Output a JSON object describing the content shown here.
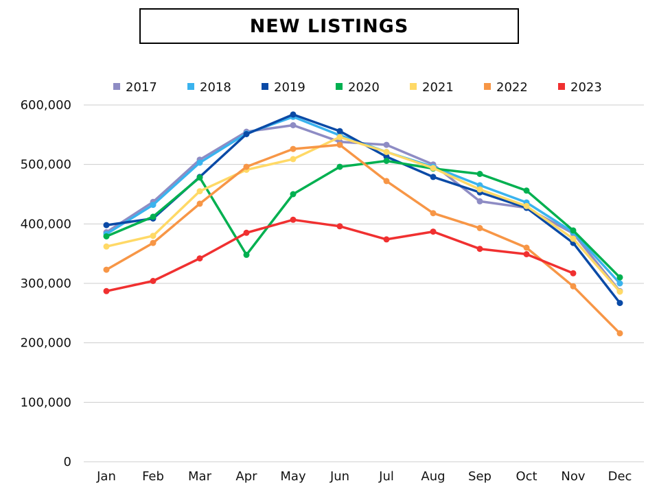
{
  "title": "NEW LISTINGS",
  "chart_data": {
    "type": "line",
    "title": "NEW LISTINGS",
    "xlabel": "",
    "ylabel": "",
    "categories": [
      "Jan",
      "Feb",
      "Mar",
      "Apr",
      "May",
      "Jun",
      "Jul",
      "Aug",
      "Sep",
      "Oct",
      "Nov",
      "Dec"
    ],
    "ylim": [
      0,
      600000
    ],
    "yticks": [
      0,
      100000,
      200000,
      300000,
      400000,
      500000,
      600000
    ],
    "ytick_labels": [
      "0",
      "100,000",
      "200,000",
      "300,000",
      "400,000",
      "500,000",
      "600,000"
    ],
    "grid": true,
    "legend_position": "top",
    "series": [
      {
        "name": "2017",
        "color": "#8E8CC4",
        "values": [
          386000,
          437000,
          508000,
          555000,
          566000,
          538000,
          533000,
          500000,
          438000,
          427000,
          384000,
          287000
        ]
      },
      {
        "name": "2018",
        "color": "#3AB3EE",
        "values": [
          383000,
          432000,
          503000,
          552000,
          580000,
          549000,
          521000,
          496000,
          465000,
          436000,
          386000,
          300000
        ]
      },
      {
        "name": "2019",
        "color": "#0A4AA6",
        "values": [
          398000,
          409000,
          479000,
          551000,
          584000,
          556000,
          513000,
          479000,
          453000,
          427000,
          368000,
          267000
        ]
      },
      {
        "name": "2020",
        "color": "#00B050",
        "values": [
          379000,
          412000,
          478000,
          348000,
          450000,
          496000,
          506000,
          493000,
          484000,
          456000,
          389000,
          310000
        ]
      },
      {
        "name": "2021",
        "color": "#FFD966",
        "values": [
          362000,
          380000,
          455000,
          491000,
          509000,
          546000,
          521000,
          494000,
          458000,
          430000,
          375000,
          286000
        ]
      },
      {
        "name": "2022",
        "color": "#F79646",
        "values": [
          323000,
          368000,
          434000,
          496000,
          526000,
          533000,
          472000,
          418000,
          393000,
          360000,
          295000,
          216000
        ]
      },
      {
        "name": "2023",
        "color": "#F03030",
        "values": [
          287000,
          304000,
          342000,
          385000,
          407000,
          396000,
          374000,
          387000,
          358000,
          349000,
          317000,
          null
        ]
      }
    ]
  }
}
